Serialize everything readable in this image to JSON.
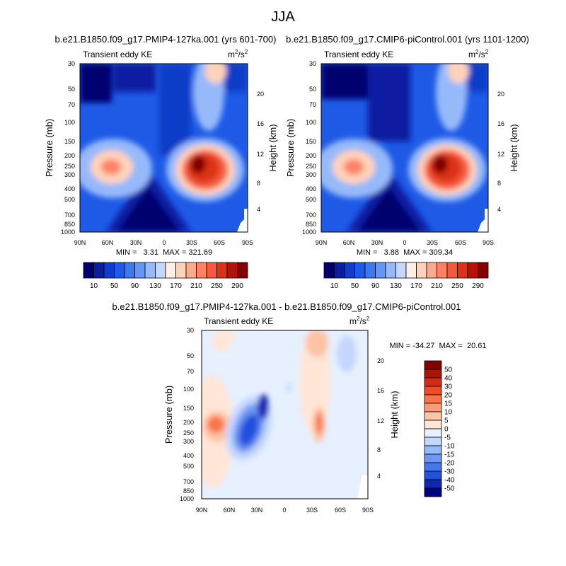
{
  "figure": {
    "season_title": "JJA"
  },
  "panels": [
    {
      "case_title": "b.e21.B1850.f09_g17.PMIP4-127ka.001 (yrs 601-700)",
      "left_label": "Transient eddy KE",
      "units_label": "m²/s²",
      "stats": "MIN =   3.31  MAX = 321.69"
    },
    {
      "case_title": "b.e21.B1850.f09_g17.CMIP6-piControl.001 (yrs 1101-1200)",
      "left_label": "Transient eddy KE",
      "units_label": "m²/s²",
      "stats": "MIN =   3.88  MAX = 309.34"
    },
    {
      "case_title": "b.e21.B1850.f09_g17.PMIP4-127ka.001 - b.e21.B1850.f09_g17.CMIP6-piControl.001",
      "left_label": "Transient eddy KE",
      "units_label": "m²/s²",
      "stats": "MIN = -34.27  MAX =  20.61"
    }
  ],
  "chart_data": [
    {
      "type": "heatmap",
      "title": "b.e21.B1850.f09_g17.PMIP4-127ka.001 (yrs 601-700)",
      "xlabel": "",
      "ylabel": "Pressure (mb)",
      "y2label": "Height (km)",
      "x_ticks": [
        "90N",
        "60N",
        "30N",
        "0",
        "30S",
        "60S",
        "90S"
      ],
      "y_ticks": [
        30,
        50,
        70,
        100,
        150,
        200,
        250,
        300,
        400,
        500,
        700,
        850,
        1000
      ],
      "y2_ticks": [
        4,
        8,
        12,
        16,
        20
      ],
      "xlim": [
        90,
        -90
      ],
      "ylim": [
        1000,
        30
      ],
      "y_scale": "log",
      "min": 3.31,
      "max": 321.69,
      "colorbar": {
        "labels": [
          "10",
          "50",
          "90",
          "130",
          "170",
          "210",
          "250",
          "290"
        ]
      },
      "features": [
        {
          "name": "northern jet",
          "lat": 48,
          "pressure": 250,
          "value": 190
        },
        {
          "name": "southern jet",
          "lat": -38,
          "pressure": 250,
          "value": 321.69
        }
      ]
    },
    {
      "type": "heatmap",
      "title": "b.e21.B1850.f09_g17.CMIP6-piControl.001 (yrs 1101-1200)",
      "xlabel": "",
      "ylabel": "Pressure (mb)",
      "y2label": "Height (km)",
      "x_ticks": [
        "90N",
        "60N",
        "30N",
        "0",
        "30S",
        "60S",
        "90S"
      ],
      "y_ticks": [
        30,
        50,
        70,
        100,
        150,
        200,
        250,
        300,
        400,
        500,
        700,
        850,
        1000
      ],
      "y2_ticks": [
        4,
        8,
        12,
        16,
        20
      ],
      "xlim": [
        90,
        -90
      ],
      "ylim": [
        1000,
        30
      ],
      "y_scale": "log",
      "min": 3.88,
      "max": 309.34,
      "colorbar": {
        "labels": [
          "10",
          "50",
          "90",
          "130",
          "170",
          "210",
          "250",
          "290"
        ]
      },
      "features": [
        {
          "name": "northern jet",
          "lat": 48,
          "pressure": 250,
          "value": 200
        },
        {
          "name": "southern jet",
          "lat": -40,
          "pressure": 250,
          "value": 309.34
        }
      ]
    },
    {
      "type": "heatmap",
      "title": "b.e21.B1850.f09_g17.PMIP4-127ka.001 - b.e21.B1850.f09_g17.CMIP6-piControl.001",
      "xlabel": "",
      "ylabel": "Pressure (mb)",
      "y2label": "Height (km)",
      "x_ticks": [
        "90N",
        "60N",
        "30N",
        "0",
        "30S",
        "60S",
        "90S"
      ],
      "y_ticks": [
        30,
        50,
        70,
        100,
        150,
        200,
        250,
        300,
        400,
        500,
        700,
        850,
        1000
      ],
      "y2_ticks": [
        4,
        8,
        12,
        16,
        20
      ],
      "xlim": [
        90,
        -90
      ],
      "ylim": [
        1000,
        30
      ],
      "y_scale": "log",
      "min": -34.27,
      "max": 20.61,
      "colorbar": {
        "labels": [
          "50",
          "40",
          "30",
          "20",
          "15",
          "10",
          "5",
          "0",
          "-5",
          "-10",
          "-15",
          "-20",
          "-30",
          "-40",
          "-50"
        ]
      },
      "features": [
        {
          "name": "northern positive",
          "lat": 62,
          "pressure": 200,
          "value": 15
        },
        {
          "name": "midlatitude negative",
          "lat": 35,
          "pressure": 200,
          "value": -34.27
        },
        {
          "name": "southern positive",
          "lat": -33,
          "pressure": 200,
          "value": 20.61
        }
      ]
    }
  ],
  "colors": {
    "ke_scale": [
      "#00006e",
      "#0a1ea0",
      "#0f3cc8",
      "#1e5ae6",
      "#3c78f0",
      "#6496f5",
      "#96b9fa",
      "#c3d7ff",
      "#fff0e6",
      "#ffd2b9",
      "#ffaa8c",
      "#ff8264",
      "#f55a3c",
      "#dc3219",
      "#b41405",
      "#820000"
    ],
    "diff_scale": [
      "#820000",
      "#aa1405",
      "#d22d14",
      "#f04b28",
      "#fa7346",
      "#ff9b78",
      "#ffc3a5",
      "#ffe6d7",
      "#e6f0ff",
      "#c3d7ff",
      "#96b9fa",
      "#6e96f5",
      "#4678eb",
      "#2350dc",
      "#0a28b4",
      "#000082"
    ]
  }
}
